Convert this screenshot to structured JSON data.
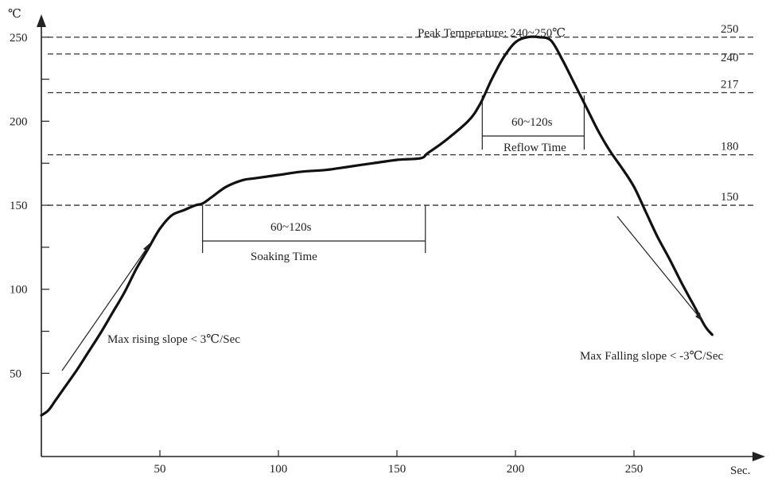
{
  "chart_data": {
    "type": "line",
    "title": "",
    "ylabel": "℃",
    "xlabel": "Sec.",
    "xlim": [
      0,
      295
    ],
    "ylim": [
      0,
      265
    ],
    "x_ticks": [
      50,
      100,
      150,
      200,
      250
    ],
    "y_ticks": [
      50,
      100,
      150,
      200,
      250
    ],
    "y_minor_ticks": [
      75,
      125,
      175,
      225
    ],
    "reference_lines": [
      {
        "value": 250,
        "label": "250"
      },
      {
        "value": 240,
        "label": "240"
      },
      {
        "value": 217,
        "label": "217"
      },
      {
        "value": 180,
        "label": "180"
      },
      {
        "value": 150,
        "label": "150"
      }
    ],
    "series": [
      {
        "x": [
          0,
          3,
          6,
          10,
          15,
          20,
          25,
          30,
          35,
          40,
          45,
          50,
          55,
          60,
          65,
          68,
          72,
          78,
          85,
          90,
          100,
          110,
          120,
          130,
          140,
          150,
          160,
          163,
          170,
          180,
          185,
          190,
          195,
          200,
          205,
          210,
          215,
          220,
          225,
          230,
          235,
          240,
          245,
          250,
          255,
          260,
          265,
          270,
          275,
          280,
          283
        ],
        "y": [
          25,
          28,
          34,
          42,
          52,
          63,
          74,
          86,
          98,
          112,
          124,
          136,
          144,
          147,
          150,
          151,
          155,
          161,
          165,
          166,
          168,
          170,
          171,
          173,
          175,
          177,
          178,
          181,
          188,
          200,
          210,
          225,
          238,
          247,
          250,
          250,
          248,
          236,
          222,
          208,
          194,
          182,
          172,
          161,
          146,
          131,
          118,
          104,
          91,
          78,
          73
        ]
      }
    ],
    "annotations": {
      "peak": "Peak Temperature: 240~250℃",
      "reflow_time": "60~120s",
      "reflow_label": "Reflow Time",
      "soak_time": "60~120s",
      "soak_label": "Soaking Time",
      "rising": "Max rising slope < 3℃/Sec",
      "falling": "Max Falling slope < -3℃/Sec"
    },
    "soak_bracket": [
      68,
      162
    ],
    "reflow_bracket": [
      186,
      229
    ],
    "grid": false
  }
}
